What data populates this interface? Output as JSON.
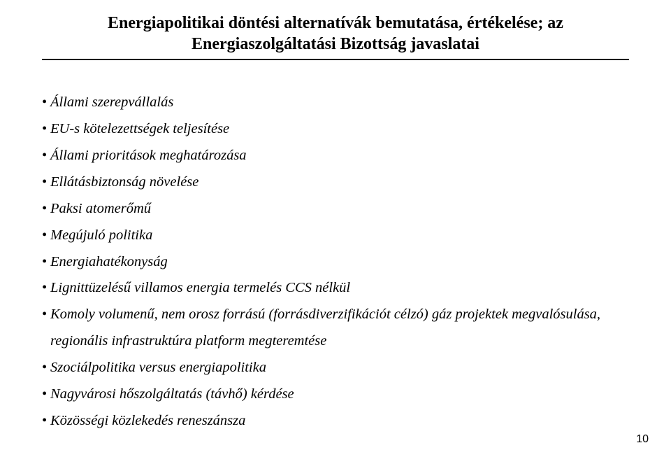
{
  "title": {
    "line1": "Energiapolitikai döntési alternatívák bemutatása, értékelése; az",
    "line2": "Energiaszolgáltatási Bizottság javaslatai",
    "fontsize": 24,
    "fontweight": "bold",
    "color": "#000000",
    "underline_color": "#000000"
  },
  "bullets": {
    "items": [
      "Állami szerepvállalás",
      "EU-s kötelezettségek teljesítése",
      "Állami prioritások meghatározása",
      "Ellátásbiztonság növelése",
      "Paksi atomerőmű",
      "Megújuló politika",
      "Energiahatékonyság",
      "Lignittüzelésű villamos energia termelés CCS nélkül",
      "Komoly volumenű, nem orosz forrású (forrásdiverzifikációt célzó) gáz projektek megvalósulása, regionális infrastruktúra platform megteremtése",
      "Szociálpolitika versus energiapolitika",
      "Nagyvárosi hőszolgáltatás (távhő) kérdése",
      "Közösségi közlekedés reneszánsza"
    ],
    "fontsize": 20.5,
    "fontstyle": "italic",
    "color": "#000000",
    "line_height": 1.85
  },
  "page_number": "10",
  "background_color": "#ffffff"
}
